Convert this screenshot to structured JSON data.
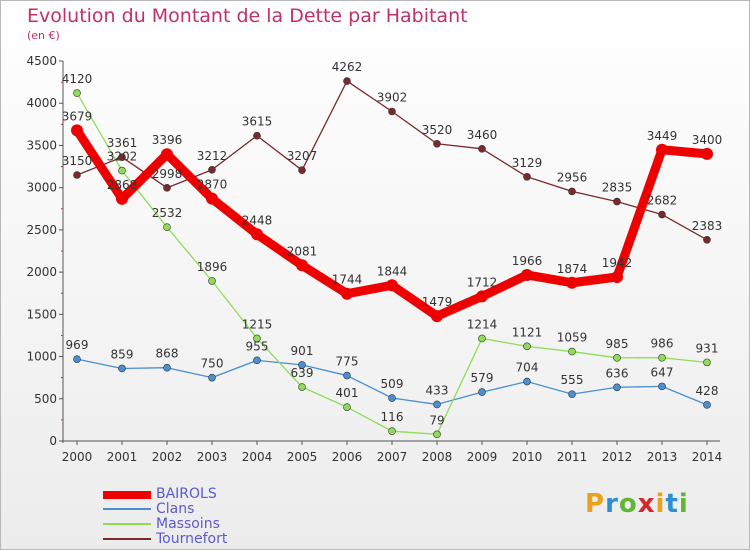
{
  "header": {
    "title": "Evolution du Montant de la Dette par Habitant",
    "subtitle": "(en €)"
  },
  "logo": {
    "text": "Proxiti",
    "letters": [
      "P",
      "r",
      "o",
      "x",
      "i",
      "t",
      "i"
    ],
    "colors": [
      "#e8a21c",
      "#2f8fd0",
      "#62b636",
      "#d8262a",
      "#e8a21c",
      "#2f8fd0",
      "#62b636"
    ]
  },
  "chart_data": {
    "type": "line",
    "title": "Evolution du Montant de la Dette par Habitant",
    "subtitle": "(en €)",
    "xlabel": "",
    "ylabel": "",
    "x": [
      "2000",
      "2001",
      "2002",
      "2003",
      "2004",
      "2005",
      "2006",
      "2007",
      "2008",
      "2009",
      "2010",
      "2011",
      "2012",
      "2013",
      "2014"
    ],
    "yticks": [
      "0",
      "500",
      "1000",
      "1500",
      "2000",
      "2500",
      "3000",
      "3500",
      "4000",
      "4500"
    ],
    "ylim": [
      0,
      4500
    ],
    "grid": false,
    "legend_position": "bottom-left",
    "series": [
      {
        "name": "BAIROLS",
        "color": "#ee0000",
        "values": [
          3679,
          2868,
          3396,
          2870,
          2448,
          2081,
          1744,
          1844,
          1479,
          1712,
          1966,
          1874,
          1942,
          3449,
          3400
        ],
        "labels": [
          "3679",
          "2868",
          "3396",
          "2870",
          "2448",
          "2081",
          "1744",
          "1844",
          "1479",
          "1712",
          "1966",
          "1874",
          "1942",
          "3449",
          "3400"
        ]
      },
      {
        "name": "Clans",
        "color": "#4a8fd0",
        "values": [
          969,
          859,
          868,
          750,
          955,
          901,
          775,
          509,
          433,
          579,
          704,
          555,
          636,
          647,
          428
        ],
        "labels": [
          "969",
          "859",
          "868",
          "750",
          "955",
          "901",
          "775",
          "509",
          "433",
          "579",
          "704",
          "555",
          "636",
          "647",
          "428"
        ]
      },
      {
        "name": "Massoins",
        "color": "#8fdc58",
        "values": [
          4120,
          3202,
          2532,
          1896,
          1215,
          639,
          401,
          116,
          79,
          1214,
          1121,
          1059,
          985,
          986,
          931
        ],
        "labels": [
          "4120",
          "3202",
          "2532",
          "1896",
          "1215",
          "639",
          "401",
          "116",
          "79",
          "1214",
          "1121",
          "1059",
          "985",
          "986",
          "931"
        ]
      },
      {
        "name": "Tournefort",
        "color": "#7a2a2a",
        "values": [
          3150,
          3361,
          2998,
          3212,
          3615,
          3207,
          4262,
          3902,
          3520,
          3460,
          3129,
          2956,
          2835,
          2682,
          2383
        ],
        "labels": [
          "3150",
          "3361",
          "2998",
          "3212",
          "3615",
          "3207",
          "4262",
          "3902",
          "3520",
          "3460",
          "3129",
          "2956",
          "2835",
          "2682",
          "2383"
        ]
      }
    ]
  }
}
